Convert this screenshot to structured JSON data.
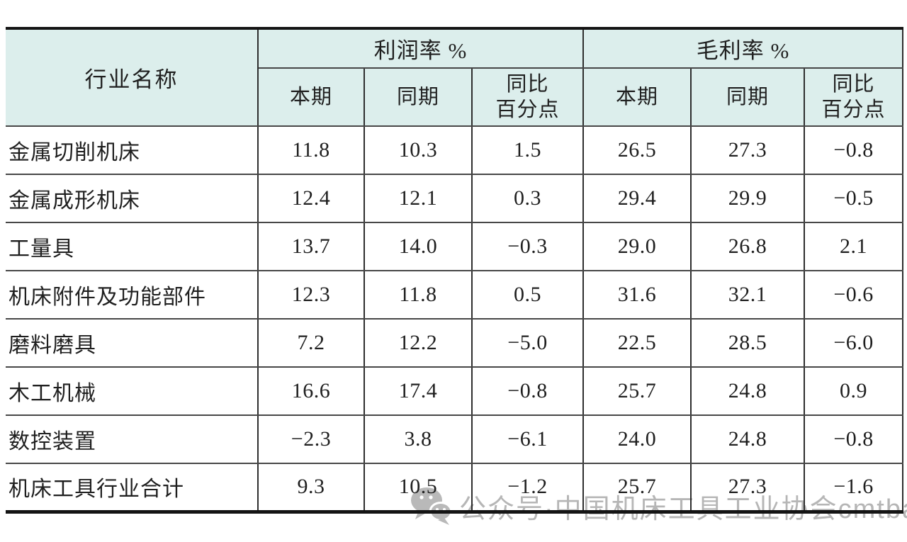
{
  "table": {
    "header": {
      "industry_col": "行业名称",
      "groups": [
        {
          "label": "利润率 %"
        },
        {
          "label": "毛利率 %"
        }
      ],
      "subheaders": [
        "本期",
        "同期",
        "同比\n百分点",
        "本期",
        "同期",
        "同比\n百分点"
      ]
    },
    "rows": [
      {
        "name": "金属切削机床",
        "values": [
          "11.8",
          "10.3",
          "1.5",
          "26.5",
          "27.3",
          "−0.8"
        ]
      },
      {
        "name": "金属成形机床",
        "values": [
          "12.4",
          "12.1",
          "0.3",
          "29.4",
          "29.9",
          "−0.5"
        ]
      },
      {
        "name": "工量具",
        "values": [
          "13.7",
          "14.0",
          "−0.3",
          "29.0",
          "26.8",
          "2.1"
        ]
      },
      {
        "name": "机床附件及功能部件",
        "values": [
          "12.3",
          "11.8",
          "0.5",
          "31.6",
          "32.1",
          "−0.6"
        ]
      },
      {
        "name": "磨料磨具",
        "values": [
          "7.2",
          "12.2",
          "−5.0",
          "22.5",
          "28.5",
          "−6.0"
        ]
      },
      {
        "name": "木工机械",
        "values": [
          "16.6",
          "17.4",
          "−0.8",
          "25.7",
          "24.8",
          "0.9"
        ]
      },
      {
        "name": "数控装置",
        "values": [
          "−2.3",
          "3.8",
          "−6.1",
          "24.0",
          "24.8",
          "−0.8"
        ]
      },
      {
        "name": "机床工具行业合计",
        "values": [
          "9.3",
          "10.5",
          "−1.2",
          "25.7",
          "27.3",
          "−1.6"
        ]
      }
    ]
  },
  "watermark": {
    "text": "公众号·中国机床工具工业协会cmtba",
    "icon": "wechat-icon",
    "color": "#b6b6b6"
  },
  "colors": {
    "header_bg": "#dceeec",
    "thick_border": "#141414",
    "grid_line": "#474747",
    "text": "#1f1f1f"
  },
  "chart_data": {
    "type": "table",
    "title": "",
    "column_groups": [
      "行业名称",
      "利润率 %",
      "毛利率 %"
    ],
    "columns": [
      "行业名称",
      "利润率% 本期",
      "利润率% 同期",
      "利润率% 同比百分点",
      "毛利率% 本期",
      "毛利率% 同期",
      "毛利率% 同比百分点"
    ],
    "rows": [
      [
        "金属切削机床",
        11.8,
        10.3,
        1.5,
        26.5,
        27.3,
        -0.8
      ],
      [
        "金属成形机床",
        12.4,
        12.1,
        0.3,
        29.4,
        29.9,
        -0.5
      ],
      [
        "工量具",
        13.7,
        14.0,
        -0.3,
        29.0,
        26.8,
        2.1
      ],
      [
        "机床附件及功能部件",
        12.3,
        11.8,
        0.5,
        31.6,
        32.1,
        -0.6
      ],
      [
        "磨料磨具",
        7.2,
        12.2,
        -5.0,
        22.5,
        28.5,
        -6.0
      ],
      [
        "木工机械",
        16.6,
        17.4,
        -0.8,
        25.7,
        24.8,
        0.9
      ],
      [
        "数控装置",
        -2.3,
        3.8,
        -6.1,
        24.0,
        24.8,
        -0.8
      ],
      [
        "机床工具行业合计",
        9.3,
        10.5,
        -1.2,
        25.7,
        27.3,
        -1.6
      ]
    ]
  }
}
